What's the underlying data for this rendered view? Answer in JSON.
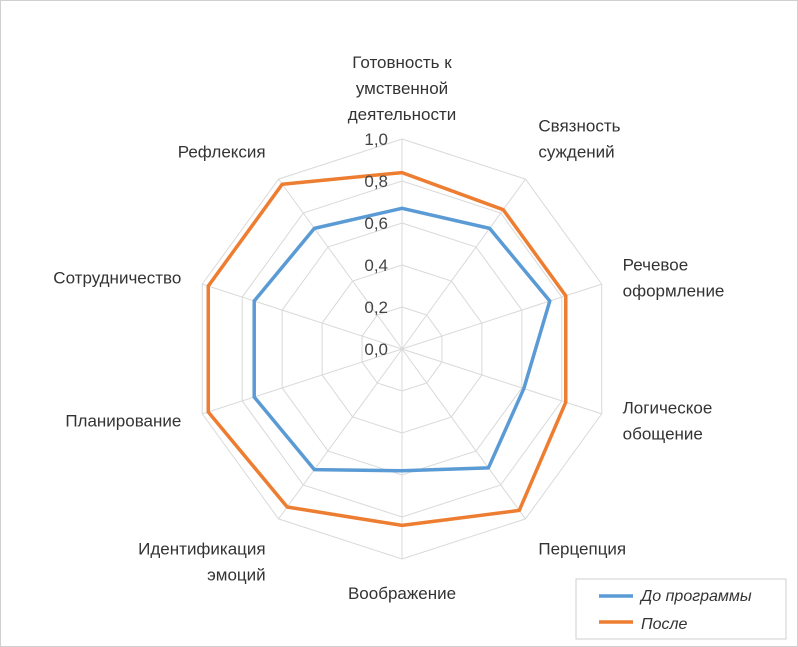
{
  "chart_data": {
    "type": "radar",
    "categories": [
      "Готовность к умственной деятельности",
      "Связность суждений",
      "Речевое оформление",
      "Логическое обощение",
      "Перцепция",
      "Воображение",
      "Идентификация эмоций",
      "Планирование",
      "Сотрудничество",
      "Рефлексия"
    ],
    "category_lines": [
      [
        "Готовность к",
        "умственной",
        "деятельности"
      ],
      [
        "Связность",
        "суждений"
      ],
      [
        "Речевое",
        "оформление"
      ],
      [
        "Логическое",
        "обощение"
      ],
      [
        "Перцепция"
      ],
      [
        "Воображение"
      ],
      [
        "Идентификация",
        "эмоций"
      ],
      [
        "Планирование"
      ],
      [
        "Сотрудничество"
      ],
      [
        "Рефлексия"
      ]
    ],
    "series": [
      {
        "name": "До программы",
        "color": "#5b9bd5",
        "values": [
          0.67,
          0.71,
          0.74,
          0.61,
          0.7,
          0.58,
          0.71,
          0.74,
          0.74,
          0.71
        ]
      },
      {
        "name": "После",
        "color": "#ed7d31",
        "values": [
          0.84,
          0.82,
          0.82,
          0.82,
          0.95,
          0.84,
          0.93,
          0.97,
          0.97,
          0.97
        ]
      }
    ],
    "rlim": [
      0,
      1.0
    ],
    "r_ticks": [
      "0,0",
      "0,2",
      "0,4",
      "0,6",
      "0,8",
      "1,0"
    ],
    "grid": true,
    "grid_color": "#d9d9d9",
    "legend_position": "bottom-right"
  }
}
